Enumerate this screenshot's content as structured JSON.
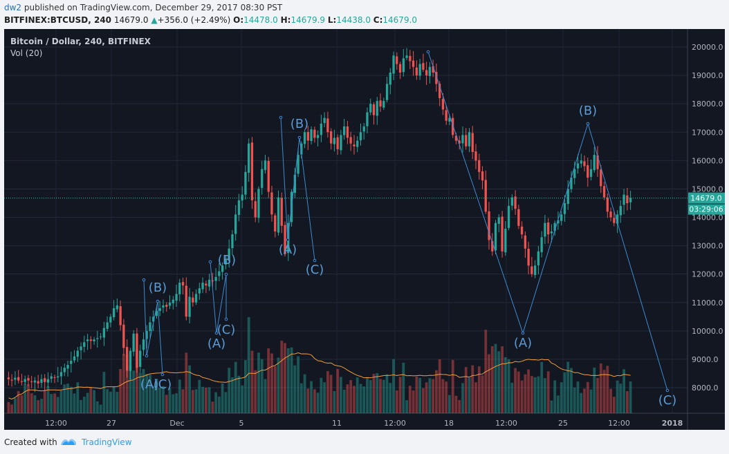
{
  "header": {
    "author": "dw2",
    "published_text": "published on TradingView.com, December 29, 2017 08:30 PST",
    "symbol": "BITFINEX:BTCUSD, 240",
    "last": "14679.0",
    "arrow": "▲",
    "change": "+356.0 (+2.49%)",
    "o_label": "O:",
    "o_val": "14478.0",
    "h_label": "H:",
    "h_val": "14679.9",
    "l_label": "L:",
    "l_val": "14438.0",
    "c_label": "C:",
    "c_val": "14679.0"
  },
  "legend": {
    "title": "Bitcoin / Dollar, 240, BITFINEX",
    "volume": "Vol (20)"
  },
  "price_badge": "14679.0",
  "countdown_badge": "03:29:06",
  "footer": {
    "created_with": "Created with",
    "brand": "TradingView"
  },
  "colors": {
    "background": "#131722",
    "up": "#26a69a",
    "down": "#ef5350",
    "wave": "#3d8bd4",
    "vol_ma": "#f59d3c",
    "price_line": "#4db6ac"
  },
  "chart_data": {
    "type": "candlestick",
    "ylim": [
      7200,
      20600
    ],
    "yticks": [
      8000,
      9000,
      10000,
      11000,
      12000,
      13000,
      14000,
      15000,
      16000,
      17000,
      18000,
      19000,
      20000
    ],
    "ytick_labels": [
      "8000.0",
      "9000.0",
      "10000.0",
      "11000.0",
      "12000.0",
      "13000.0",
      "14000.0",
      "15000.0",
      "16000.0",
      "17000.0",
      "18000.0",
      "19000.0",
      "20000.0"
    ],
    "xticks": [
      "12:00",
      "27",
      "Dec",
      "5",
      "11",
      "12:00",
      "18",
      "12:00",
      "25",
      "12:00",
      "2018"
    ],
    "current_price": 14679.0,
    "closes": [
      8300,
      8250,
      8350,
      8250,
      8200,
      8300,
      8250,
      8200,
      8250,
      8150,
      8300,
      8200,
      8300,
      8400,
      8350,
      8400,
      8550,
      8700,
      8800,
      8950,
      9100,
      9300,
      9450,
      9600,
      9700,
      9650,
      9700,
      9750,
      9800,
      10100,
      10300,
      10500,
      10800,
      10900,
      10200,
      9400,
      8600,
      9300,
      9900,
      8700,
      9300,
      9700,
      10000,
      10300,
      10500,
      10700,
      10800,
      10900,
      10850,
      11000,
      11100,
      11300,
      11700,
      11600,
      10500,
      11200,
      11000,
      11300,
      11500,
      11700,
      11600,
      11800,
      11750,
      11900,
      12100,
      12300,
      12500,
      12900,
      13400,
      14100,
      14600,
      14800,
      15600,
      16600,
      14600,
      14000,
      15000,
      15700,
      16000,
      14900,
      14100,
      13500,
      14700,
      13700,
      12700,
      13800,
      14900,
      15500,
      16200,
      16600,
      17000,
      16700,
      17100,
      16800,
      16900,
      17300,
      17500,
      17000,
      16600,
      16800,
      16400,
      16900,
      17200,
      16800,
      16600,
      16500,
      16700,
      17000,
      17200,
      17700,
      18000,
      17600,
      18100,
      17900,
      18100,
      18700,
      19100,
      19700,
      19400,
      19100,
      19600,
      19700,
      19500,
      19300,
      19000,
      19400,
      19200,
      19000,
      19300,
      19100,
      18700,
      18200,
      17800,
      17400,
      17500,
      16900,
      16700,
      16600,
      16900,
      16500,
      17000,
      16300,
      16000,
      15600,
      15300,
      14200,
      13200,
      12800,
      13800,
      14000,
      12800,
      13600,
      14400,
      14700,
      14300,
      13700,
      13400,
      12900,
      12300,
      12000,
      12300,
      12800,
      13300,
      13800,
      13400,
      13500,
      13800,
      13900,
      14100,
      14500,
      15000,
      15400,
      15700,
      15900,
      16000,
      15800,
      15400,
      15700,
      16200,
      15700,
      15100,
      14700,
      14200,
      14000,
      13800,
      14100,
      14400,
      14800,
      14500,
      14679
    ]
  },
  "waves": [
    {
      "label": "(A)",
      "x": 210,
      "y": 520
    },
    {
      "label": "(B)",
      "x": 222,
      "y": 380
    },
    {
      "label": "(C)",
      "x": 229,
      "y": 520
    },
    {
      "label": "(A)",
      "x": 307,
      "y": 461
    },
    {
      "label": "(B)",
      "x": 322,
      "y": 340
    },
    {
      "label": "(C)",
      "x": 321,
      "y": 441
    },
    {
      "label": "(A)",
      "x": 410,
      "y": 325
    },
    {
      "label": "(B)",
      "x": 427,
      "y": 143
    },
    {
      "label": "(C)",
      "x": 449,
      "y": 354
    },
    {
      "label": "(A)",
      "x": 750,
      "y": 460
    },
    {
      "label": "(B)",
      "x": 844,
      "y": 124
    },
    {
      "label": "(C)",
      "x": 959,
      "y": 543
    }
  ]
}
